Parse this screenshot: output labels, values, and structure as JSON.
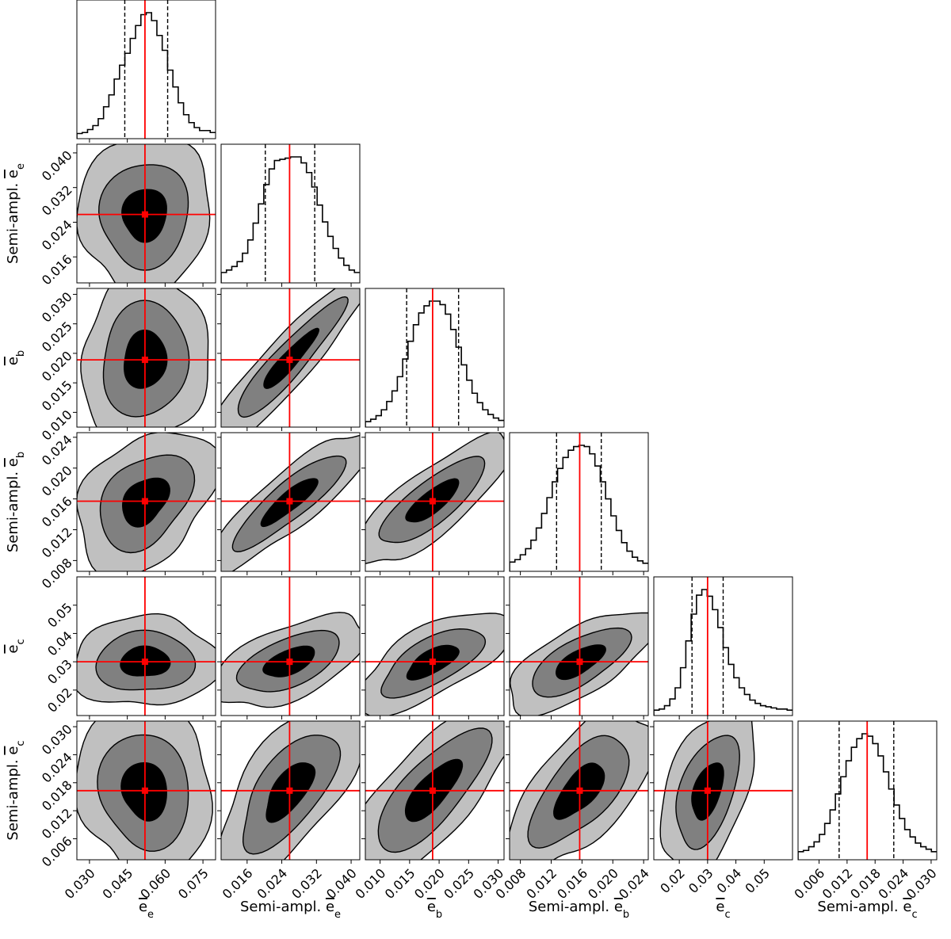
{
  "chart_data": {
    "type": "corner",
    "parameters": [
      {
        "key": "e_e",
        "label": "ē_e",
        "range": [
          0.025,
          0.08
        ],
        "ticks": [
          0.03,
          0.045,
          0.06,
          0.075
        ],
        "tick_labels": [
          "0.030",
          "0.045",
          "0.060",
          "0.075"
        ],
        "truth": 0.052,
        "quantiles": [
          0.044,
          0.061
        ],
        "hist": [
          2,
          3,
          6,
          10,
          17,
          29,
          41,
          57,
          71,
          83,
          98,
          111,
          122,
          124,
          116,
          101,
          86,
          66,
          49,
          33,
          21,
          13,
          8,
          5,
          5,
          3
        ]
      },
      {
        "key": "sa_e_e",
        "label": "Semi-ampl. ē_e",
        "range": [
          0.01,
          0.042
        ],
        "ticks": [
          0.016,
          0.024,
          0.032,
          0.04
        ],
        "tick_labels": [
          "0.016",
          "0.024",
          "0.032",
          "0.040"
        ],
        "truth": 0.0258,
        "quantiles": [
          0.0202,
          0.0316
        ],
        "hist": [
          6,
          8,
          11,
          15,
          22,
          33,
          47,
          63,
          79,
          92,
          99,
          100,
          101,
          102,
          102,
          97,
          89,
          77,
          62,
          48,
          36,
          26,
          18,
          12,
          8,
          6
        ]
      },
      {
        "key": "e_b",
        "label": "ē_b",
        "range": [
          0.0075,
          0.031
        ],
        "ticks": [
          0.01,
          0.015,
          0.02,
          0.025,
          0.03
        ],
        "tick_labels": [
          "0.010",
          "0.015",
          "0.020",
          "0.025",
          "0.030"
        ],
        "truth": 0.0189,
        "quantiles": [
          0.0145,
          0.0233
        ],
        "hist": [
          2,
          4,
          7,
          12,
          19,
          28,
          40,
          55,
          70,
          84,
          94,
          100,
          104,
          104,
          101,
          93,
          80,
          65,
          50,
          37,
          26,
          18,
          12,
          8,
          5,
          3
        ]
      },
      {
        "key": "sa_e_b",
        "label": "Semi-ampl. ē_b",
        "range": [
          0.0066,
          0.0246
        ],
        "ticks": [
          0.008,
          0.012,
          0.016,
          0.02,
          0.024
        ],
        "tick_labels": [
          "0.008",
          "0.012",
          "0.016",
          "0.020",
          "0.024"
        ],
        "truth": 0.0157,
        "quantiles": [
          0.0127,
          0.0185
        ],
        "hist": [
          5,
          7,
          11,
          16,
          23,
          33,
          45,
          58,
          71,
          82,
          91,
          97,
          100,
          101,
          100,
          94,
          84,
          71,
          57,
          43,
          31,
          21,
          14,
          9,
          6,
          4
        ]
      },
      {
        "key": "e_c",
        "label": "ē_c",
        "range": [
          0.011,
          0.06
        ],
        "ticks": [
          0.02,
          0.03,
          0.04,
          0.05
        ],
        "tick_labels": [
          "0.02",
          "0.03",
          "0.04",
          "0.05"
        ],
        "truth": 0.03,
        "quantiles": [
          0.0245,
          0.0355
        ],
        "hist": [
          2,
          3,
          6,
          12,
          22,
          40,
          64,
          88,
          105,
          110,
          104,
          92,
          76,
          58,
          43,
          31,
          22,
          16,
          11,
          8,
          6,
          5,
          4,
          3,
          3,
          2
        ]
      },
      {
        "key": "sa_e_c",
        "label": "Semi-ampl. ē_c",
        "range": [
          0.0015,
          0.0312
        ],
        "ticks": [
          0.006,
          0.012,
          0.018,
          0.024,
          0.03
        ],
        "tick_labels": [
          "0.006",
          "0.012",
          "0.018",
          "0.024",
          "0.030"
        ],
        "truth": 0.0163,
        "quantiles": [
          0.0103,
          0.022
        ],
        "hist": [
          4,
          5,
          8,
          12,
          18,
          27,
          38,
          51,
          65,
          78,
          89,
          96,
          100,
          98,
          92,
          82,
          69,
          55,
          42,
          31,
          22,
          16,
          11,
          8,
          6,
          4
        ]
      }
    ],
    "correlations": {
      "1,0": 0.15,
      "2,0": 0.05,
      "2,1": 0.9,
      "3,0": 0.2,
      "3,1": 0.85,
      "3,2": 0.85,
      "4,0": 0.05,
      "4,1": 0.65,
      "4,2": 0.7,
      "4,3": 0.6,
      "5,0": 0.05,
      "5,1": 0.7,
      "5,2": 0.7,
      "5,3": 0.65,
      "5,4": 0.55
    },
    "contour_levels_sigma": [
      1,
      2,
      3
    ],
    "colors": {
      "truth": "#ff0000",
      "fill_levels": [
        "#000000",
        "#808080",
        "#c0c0c0"
      ],
      "line": "#000000"
    }
  }
}
